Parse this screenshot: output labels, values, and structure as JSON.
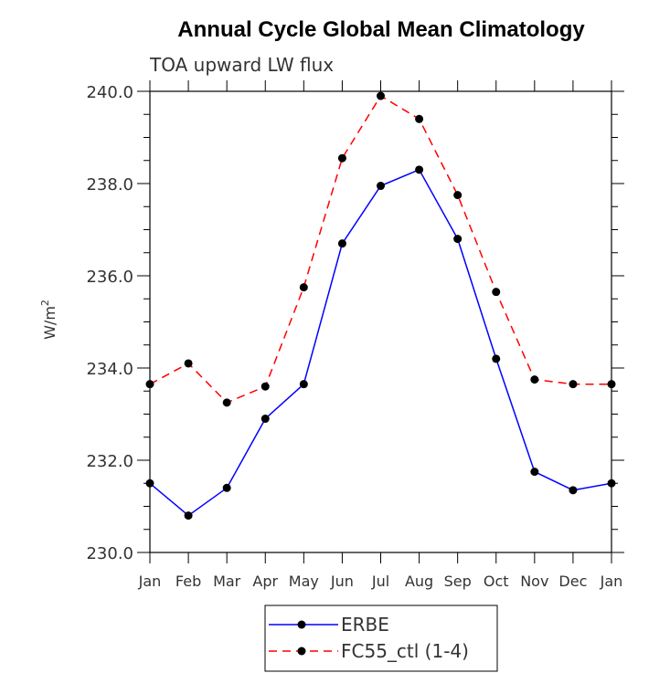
{
  "chart_data": {
    "type": "line",
    "title": "Annual Cycle Global Mean Climatology",
    "subtitle": "TOA upward LW flux",
    "xlabel": "",
    "ylabel": "W/m",
    "ylabel_superscript": "2",
    "categories": [
      "Jan",
      "Feb",
      "Mar",
      "Apr",
      "May",
      "Jun",
      "Jul",
      "Aug",
      "Sep",
      "Oct",
      "Nov",
      "Dec",
      "Jan"
    ],
    "ylim": [
      230.0,
      240.0
    ],
    "yticks": [
      "230.0",
      "232.0",
      "234.0",
      "236.0",
      "238.0",
      "240.0"
    ],
    "series": [
      {
        "name": "ERBE",
        "color": "#0000ff",
        "style": "solid",
        "marker": "circle",
        "values": [
          231.5,
          230.8,
          231.4,
          232.9,
          233.65,
          236.7,
          237.95,
          238.3,
          236.8,
          234.2,
          231.75,
          231.35,
          231.5
        ]
      },
      {
        "name": "FC55_ctl (1-4)",
        "color": "#ff0000",
        "style": "dashed",
        "marker": "circle",
        "values": [
          233.65,
          234.1,
          233.25,
          233.6,
          235.75,
          238.55,
          239.9,
          239.4,
          237.75,
          235.65,
          233.75,
          233.65,
          233.65
        ]
      }
    ],
    "legend_position": "bottom-center"
  }
}
